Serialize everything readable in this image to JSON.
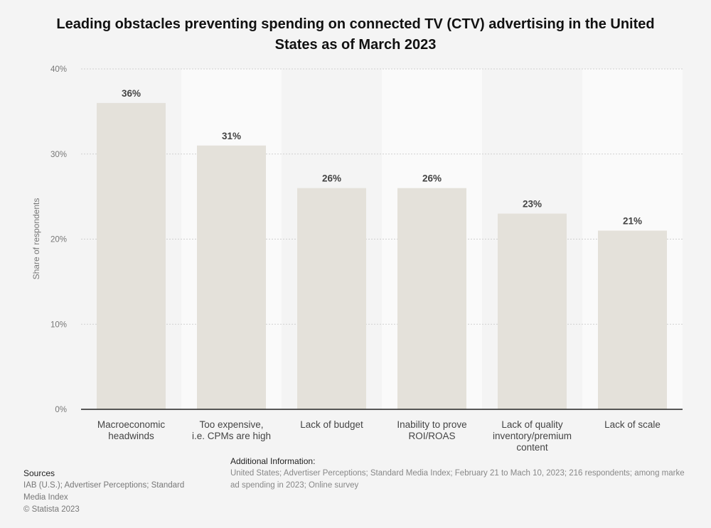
{
  "chart_data": {
    "type": "bar",
    "title": "Leading obstacles preventing spending on connected TV (CTV) advertising in the United States as of March 2023",
    "ylabel": "Share of respondents",
    "xlabel": "",
    "ylim": [
      0,
      40
    ],
    "yticks": [
      "0%",
      "10%",
      "20%",
      "30%",
      "40%"
    ],
    "categories": [
      [
        "Macroeconomic",
        "headwinds"
      ],
      [
        "Too expensive,",
        "i.e. CPMs are high"
      ],
      [
        "Lack of budget"
      ],
      [
        "Inability to prove",
        "ROI/ROAS"
      ],
      [
        "Lack of quality",
        "inventory/premium",
        "content"
      ],
      [
        "Lack of scale"
      ]
    ],
    "values": [
      36,
      31,
      26,
      26,
      23,
      21
    ],
    "data_labels": [
      "36%",
      "31%",
      "26%",
      "26%",
      "23%",
      "21%"
    ],
    "grid": true,
    "bar_color": "#e4e1da"
  },
  "footer": {
    "sources_title": "Sources",
    "sources_text": "IAB (U.S.); Advertiser Perceptions; Standard Media Index",
    "copyright": "© Statista 2023",
    "additional_title": "Additional Information:",
    "additional_line1": "United States; Advertiser Perceptions; Standard Media Index; February 21 to Mach 10, 2023; 216 respondents; among marke",
    "additional_line2": "ad spending in 2023; Online survey"
  }
}
